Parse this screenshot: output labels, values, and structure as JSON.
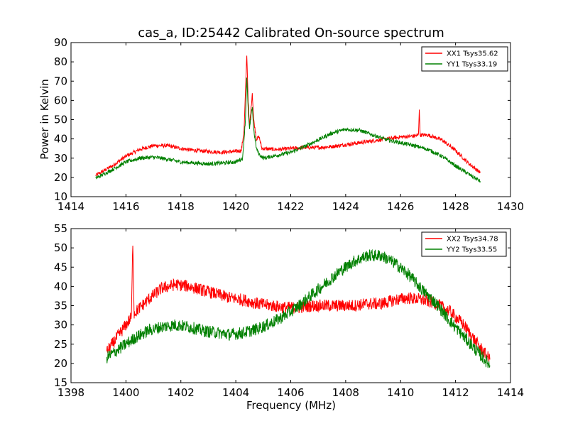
{
  "chart_data": [
    {
      "type": "line",
      "title": "cas_a, ID:25442 Calibrated On-source spectrum",
      "xlabel": "",
      "ylabel": "Power in Kelvin",
      "xlim": [
        1414,
        1430
      ],
      "ylim": [
        10,
        90
      ],
      "xticks": [
        "1414",
        "1416",
        "1418",
        "1420",
        "1422",
        "1424",
        "1426",
        "1428",
        "1430"
      ],
      "yticks": [
        "10",
        "20",
        "30",
        "40",
        "50",
        "60",
        "70",
        "80",
        "90"
      ],
      "legend_position": "top-right",
      "noise": 1.0,
      "series": [
        {
          "name": "XX1 Tsys35.62",
          "color": "#ff0000",
          "points": [
            [
              1414.9,
              21
            ],
            [
              1415.5,
              26
            ],
            [
              1416.0,
              31
            ],
            [
              1416.5,
              34.5
            ],
            [
              1417.0,
              36.5
            ],
            [
              1417.5,
              36.5
            ],
            [
              1418.0,
              35
            ],
            [
              1418.5,
              34
            ],
            [
              1419.0,
              33.5
            ],
            [
              1419.5,
              33
            ],
            [
              1420.0,
              33.5
            ],
            [
              1420.2,
              34
            ],
            [
              1420.3,
              44
            ],
            [
              1420.4,
              84
            ],
            [
              1420.45,
              60
            ],
            [
              1420.5,
              46
            ],
            [
              1420.6,
              64
            ],
            [
              1420.65,
              50
            ],
            [
              1420.75,
              40
            ],
            [
              1420.85,
              41
            ],
            [
              1420.95,
              35
            ],
            [
              1421.5,
              34.5
            ],
            [
              1422.0,
              35
            ],
            [
              1422.5,
              35.5
            ],
            [
              1423.0,
              35.5
            ],
            [
              1423.5,
              36
            ],
            [
              1424.0,
              37
            ],
            [
              1424.5,
              38
            ],
            [
              1425.0,
              39
            ],
            [
              1425.5,
              40
            ],
            [
              1426.0,
              41
            ],
            [
              1426.5,
              41.5
            ],
            [
              1426.65,
              42
            ],
            [
              1426.68,
              56
            ],
            [
              1426.71,
              42
            ],
            [
              1427.0,
              42
            ],
            [
              1427.5,
              39.5
            ],
            [
              1428.0,
              34
            ],
            [
              1428.5,
              27
            ],
            [
              1428.9,
              22.5
            ]
          ]
        },
        {
          "name": "YY1 Tsys33.19",
          "color": "#008000",
          "points": [
            [
              1414.9,
              19.5
            ],
            [
              1415.5,
              24
            ],
            [
              1416.0,
              28
            ],
            [
              1416.5,
              30
            ],
            [
              1417.0,
              30.5
            ],
            [
              1417.5,
              29.5
            ],
            [
              1418.0,
              28
            ],
            [
              1418.5,
              27.5
            ],
            [
              1419.0,
              27
            ],
            [
              1419.5,
              27.5
            ],
            [
              1420.0,
              28
            ],
            [
              1420.25,
              30
            ],
            [
              1420.35,
              50
            ],
            [
              1420.4,
              72
            ],
            [
              1420.45,
              55
            ],
            [
              1420.5,
              45
            ],
            [
              1420.6,
              57
            ],
            [
              1420.65,
              45
            ],
            [
              1420.75,
              35
            ],
            [
              1420.85,
              32
            ],
            [
              1421.0,
              30
            ],
            [
              1421.5,
              31.5
            ],
            [
              1422.0,
              33
            ],
            [
              1422.5,
              36
            ],
            [
              1423.0,
              39.5
            ],
            [
              1423.5,
              43
            ],
            [
              1424.0,
              45
            ],
            [
              1424.5,
              44.5
            ],
            [
              1425.0,
              42
            ],
            [
              1425.5,
              39.5
            ],
            [
              1426.0,
              38
            ],
            [
              1426.5,
              36.5
            ],
            [
              1427.0,
              34.5
            ],
            [
              1427.5,
              31
            ],
            [
              1428.0,
              26
            ],
            [
              1428.5,
              21.5
            ],
            [
              1428.9,
              18
            ]
          ]
        }
      ]
    },
    {
      "type": "line",
      "title": "",
      "xlabel": "Frequency (MHz)",
      "ylabel": "",
      "xlim": [
        1398,
        1414
      ],
      "ylim": [
        15,
        55
      ],
      "xticks": [
        "1398",
        "1400",
        "1402",
        "1404",
        "1406",
        "1408",
        "1410",
        "1412",
        "1414"
      ],
      "yticks": [
        "15",
        "20",
        "25",
        "30",
        "35",
        "40",
        "45",
        "50",
        "55"
      ],
      "legend_position": "top-right",
      "noise": 1.6,
      "series": [
        {
          "name": "XX2 Tsys34.78",
          "color": "#ff0000",
          "points": [
            [
              1399.3,
              23
            ],
            [
              1399.8,
              28
            ],
            [
              1400.2,
              32
            ],
            [
              1400.25,
              52
            ],
            [
              1400.3,
              33
            ],
            [
              1400.8,
              36.5
            ],
            [
              1401.3,
              39.5
            ],
            [
              1401.8,
              40.5
            ],
            [
              1402.3,
              40
            ],
            [
              1402.8,
              39
            ],
            [
              1403.3,
              38
            ],
            [
              1403.8,
              37
            ],
            [
              1404.3,
              36.5
            ],
            [
              1404.8,
              35.5
            ],
            [
              1405.3,
              35
            ],
            [
              1405.8,
              34.5
            ],
            [
              1406.3,
              34.5
            ],
            [
              1406.8,
              35
            ],
            [
              1407.3,
              35
            ],
            [
              1407.8,
              35
            ],
            [
              1408.3,
              35
            ],
            [
              1408.8,
              35.5
            ],
            [
              1409.3,
              35.5
            ],
            [
              1409.8,
              36.5
            ],
            [
              1410.3,
              37
            ],
            [
              1410.8,
              36.5
            ],
            [
              1411.3,
              35.5
            ],
            [
              1411.8,
              33.5
            ],
            [
              1412.3,
              30
            ],
            [
              1412.8,
              25
            ],
            [
              1413.25,
              21
            ]
          ]
        },
        {
          "name": "YY2 Tsys33.55",
          "color": "#008000",
          "points": [
            [
              1399.3,
              21.5
            ],
            [
              1399.8,
              24
            ],
            [
              1400.3,
              26.5
            ],
            [
              1400.8,
              28.5
            ],
            [
              1401.3,
              29.5
            ],
            [
              1401.8,
              30
            ],
            [
              1402.3,
              29.5
            ],
            [
              1402.8,
              28.5
            ],
            [
              1403.3,
              28
            ],
            [
              1403.8,
              27.5
            ],
            [
              1404.3,
              28
            ],
            [
              1404.8,
              29
            ],
            [
              1405.3,
              30.5
            ],
            [
              1405.8,
              32.5
            ],
            [
              1406.3,
              35
            ],
            [
              1406.8,
              38
            ],
            [
              1407.3,
              41
            ],
            [
              1407.8,
              44
            ],
            [
              1408.3,
              46.5
            ],
            [
              1408.8,
              48
            ],
            [
              1409.3,
              48
            ],
            [
              1409.8,
              46
            ],
            [
              1410.3,
              43
            ],
            [
              1410.8,
              39
            ],
            [
              1411.3,
              35.5
            ],
            [
              1411.8,
              31
            ],
            [
              1412.3,
              27
            ],
            [
              1412.8,
              23
            ],
            [
              1413.25,
              19.5
            ]
          ]
        }
      ]
    }
  ]
}
